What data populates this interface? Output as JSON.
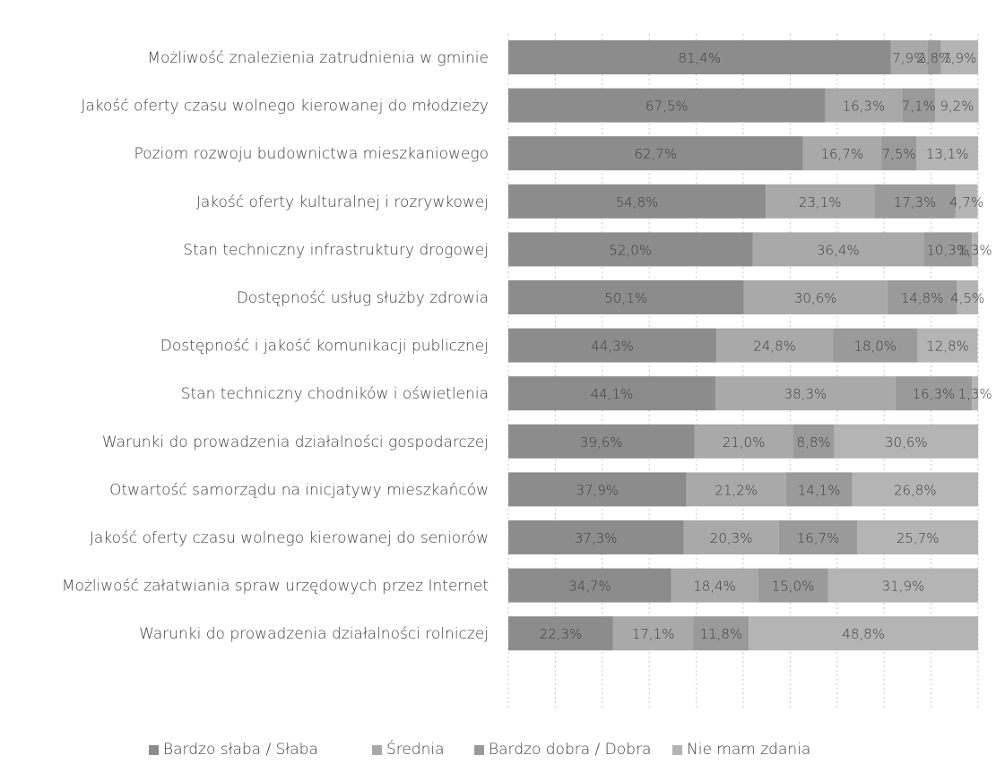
{
  "chart_data": {
    "type": "bar",
    "orientation": "horizontal",
    "stacked": "100%",
    "categories": [
      "Możliwość znalezienia zatrudnienia w gminie",
      "Jakość oferty czasu wolnego kierowanej do młodzieży",
      "Poziom rozwoju budownictwa mieszkaniowego",
      "Jakość oferty kulturalnej i rozrywkowej",
      "Stan techniczny infrastruktury drogowej",
      "Dostępność usług służby zdrowia",
      "Dostępność i jakość komunikacji publicznej",
      "Stan techniczny chodników i oświetlenia",
      "Warunki do prowadzenia działalności gospodarczej",
      "Otwartość samorządu na inicjatywy mieszkańców",
      "Jakość oferty czasu wolnego kierowanej do seniorów",
      "Możliwość załatwiania spraw urzędowych przez Internet",
      "Warunki do prowadzenia działalności rolniczej"
    ],
    "series": [
      {
        "name": "Bardzo słaba / Słaba",
        "color": "#8c8c8c",
        "values": [
          81.4,
          67.5,
          62.7,
          54.8,
          52.0,
          50.1,
          44.3,
          44.1,
          39.6,
          37.9,
          37.3,
          34.7,
          22.3
        ],
        "labels": [
          "81,4%",
          "67,5%",
          "62,7%",
          "54,8%",
          "52,0%",
          "50,1%",
          "44,3%",
          "44,1%",
          "39,6%",
          "37,9%",
          "37,3%",
          "34,7%",
          "22,3%"
        ]
      },
      {
        "name": "Średnia",
        "color": "#a9a9a9",
        "values": [
          7.9,
          16.3,
          16.7,
          23.1,
          36.4,
          30.6,
          24.8,
          38.3,
          21.0,
          21.2,
          20.3,
          18.4,
          17.1
        ],
        "labels": [
          "7,9%",
          "16,3%",
          "16,7%",
          "23,1%",
          "36,4%",
          "30,6%",
          "24,8%",
          "38,3%",
          "21,0%",
          "21,2%",
          "20,3%",
          "18,4%",
          "17,1%"
        ]
      },
      {
        "name": "Bardzo dobra / Dobra",
        "color": "#9a9a9a",
        "values": [
          2.8,
          7.1,
          7.5,
          17.3,
          10.3,
          14.8,
          18.0,
          16.3,
          8.8,
          14.1,
          16.7,
          15.0,
          11.8
        ],
        "labels": [
          "2,8%",
          "7,1%",
          "7,5%",
          "17,3%",
          "10,3%",
          "14,8%",
          "18,0%",
          "16,3%",
          "8,8%",
          "14,1%",
          "16,7%",
          "15,0%",
          "11,8%"
        ]
      },
      {
        "name": "Nie mam zdania",
        "color": "#b4b4b4",
        "values": [
          7.9,
          9.2,
          13.1,
          4.7,
          1.3,
          4.5,
          12.8,
          1.3,
          30.6,
          26.8,
          25.7,
          31.9,
          48.8
        ],
        "labels": [
          "7,9%",
          "9,2%",
          "13,1%",
          "4,7%",
          "1,3%",
          "4,5%",
          "12,8%",
          "1,3%",
          "30,6%",
          "26,8%",
          "25,7%",
          "31,9%",
          "48,8%"
        ]
      }
    ],
    "xlim": [
      0,
      100
    ],
    "grid": true,
    "legend_position": "bottom"
  }
}
